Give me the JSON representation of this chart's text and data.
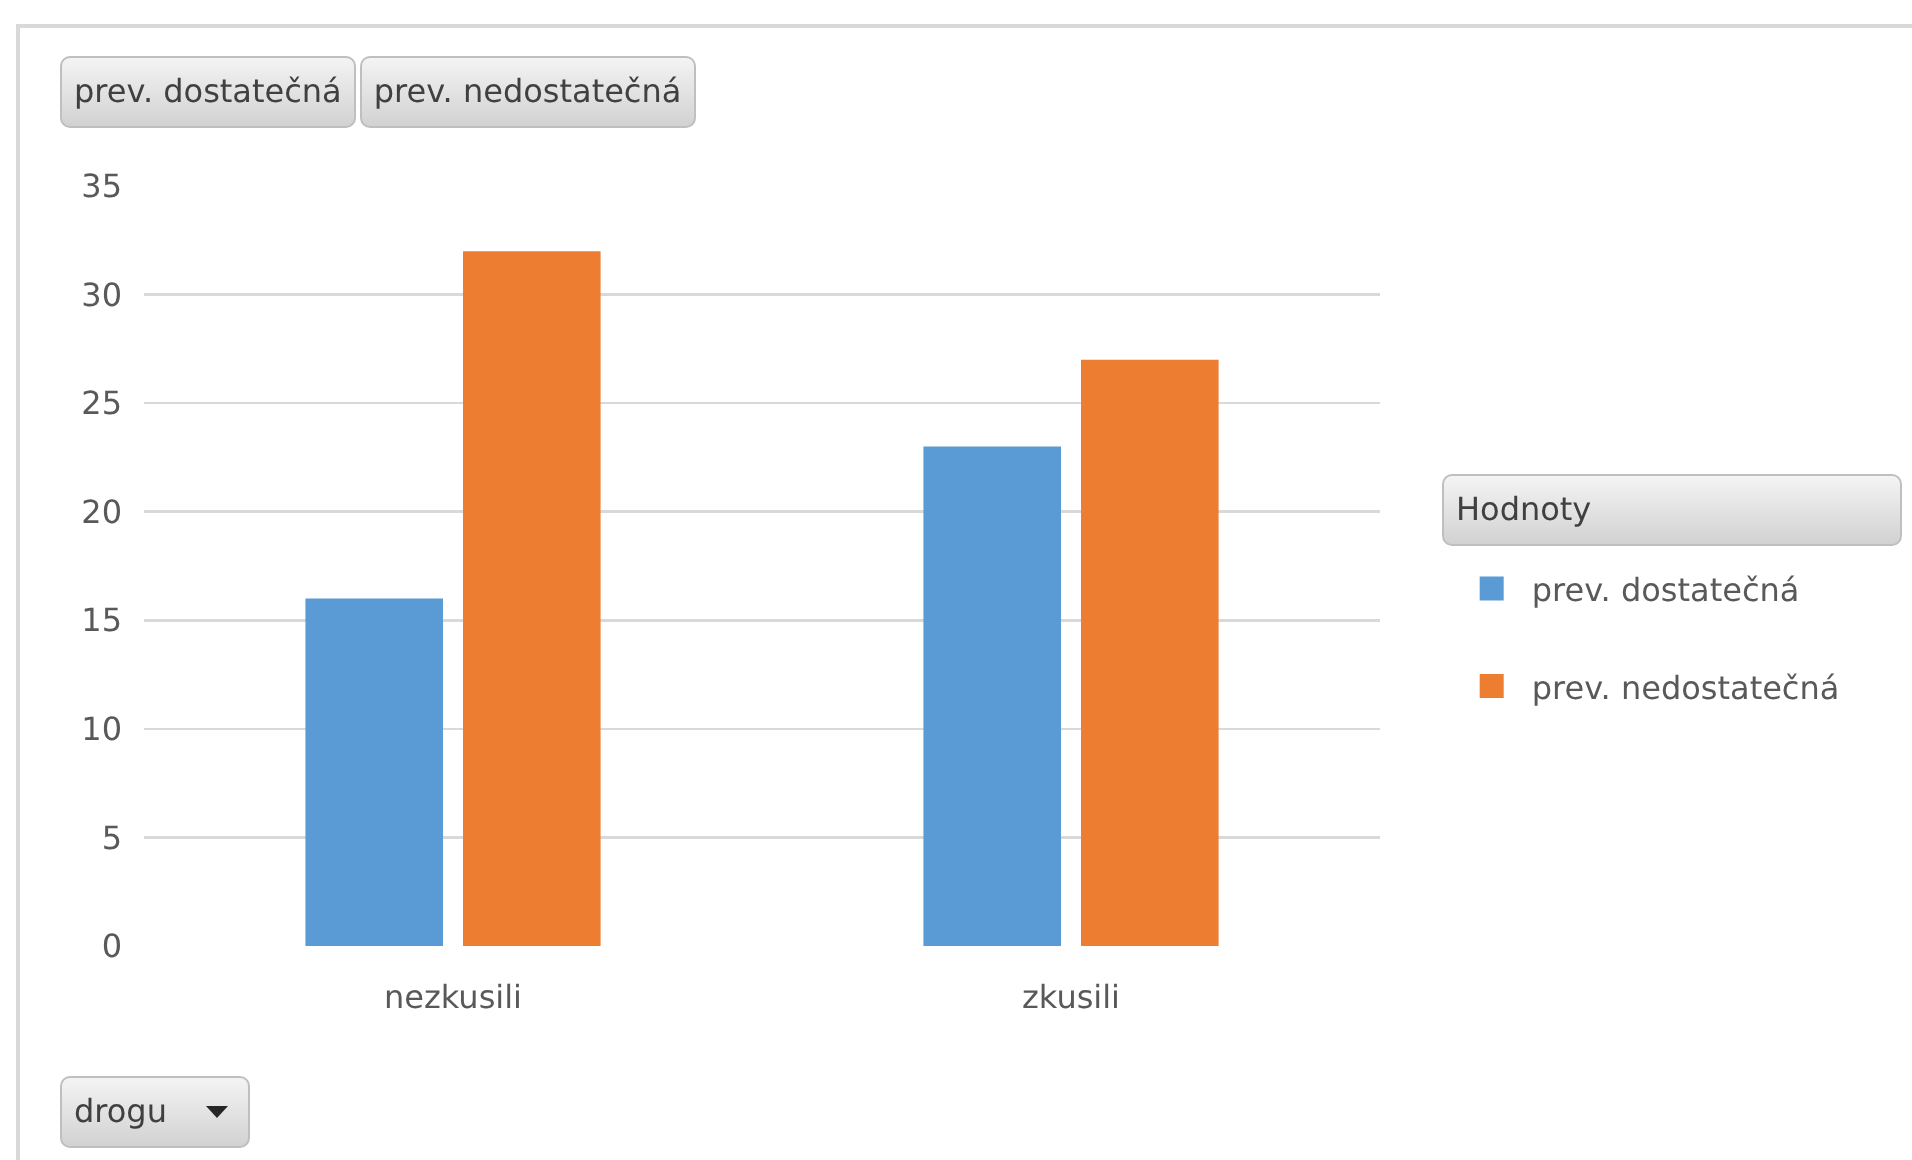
{
  "chart_data": {
    "type": "bar",
    "categories": [
      "nezkusili",
      "zkusili"
    ],
    "series": [
      {
        "name": "prev. dostatečná",
        "color": "#5b9bd5",
        "values": [
          16,
          23
        ]
      },
      {
        "name": "prev. nedostatečná",
        "color": "#ed7d31",
        "values": [
          32,
          27
        ]
      }
    ],
    "xlabel": "drogu",
    "legend_title": "Hodnoty",
    "ylim": [
      0,
      35
    ],
    "yticks": [
      0,
      5,
      10,
      15,
      20,
      25,
      30,
      35
    ],
    "grid": "y",
    "legend": "right"
  }
}
